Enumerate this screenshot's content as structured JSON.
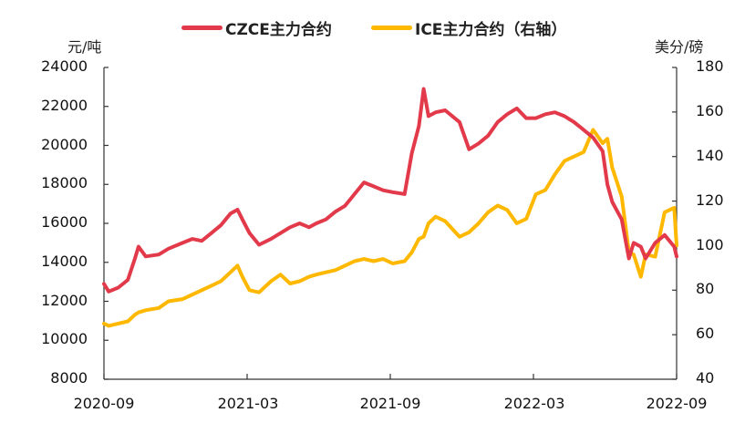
{
  "chart_data": {
    "type": "line",
    "title": "",
    "legend": [
      {
        "name": "CZCE主力合约",
        "color": "#E23A4A",
        "axis": "left"
      },
      {
        "name": "ICE主力合约（右轴）",
        "color": "#FFB800",
        "axis": "right"
      }
    ],
    "legend_position": "top",
    "xlabel": "",
    "ylabel_left": "元/吨",
    "ylabel_right": "美分/磅",
    "x_ticks": [
      "2020-09",
      "2021-03",
      "2021-09",
      "2022-03",
      "2022-09"
    ],
    "y_left_ticks": [
      8000,
      10000,
      12000,
      14000,
      16000,
      18000,
      20000,
      22000,
      24000
    ],
    "y_right_ticks": [
      40,
      60,
      80,
      100,
      120,
      140,
      160,
      180
    ],
    "ylim_left": [
      8000,
      24000
    ],
    "ylim_right": [
      40,
      180
    ],
    "grid": false,
    "x_months_from_2020_09": [
      0,
      0.2,
      0.6,
      1.0,
      1.3,
      1.45,
      1.75,
      2.3,
      2.7,
      3.3,
      3.7,
      4.1,
      4.5,
      4.9,
      5.3,
      5.6,
      5.8,
      6.1,
      6.5,
      7.0,
      7.4,
      7.8,
      8.2,
      8.6,
      8.9,
      9.3,
      9.7,
      10.1,
      10.5,
      10.9,
      11.3,
      11.7,
      12.1,
      12.6,
      12.9,
      13.2,
      13.4,
      13.6,
      13.9,
      14.3,
      14.9,
      15.3,
      15.7,
      16.1,
      16.5,
      16.9,
      17.3,
      17.7,
      18.1,
      18.5,
      18.9,
      19.3,
      19.7,
      20.1,
      20.5,
      20.9,
      21.1,
      21.3,
      21.7,
      22.0,
      22.2,
      22.5,
      22.7,
      23.1,
      23.5,
      23.9,
      24.0
    ],
    "series": [
      {
        "name": "CZCE主力合约",
        "axis": "left",
        "values": [
          12900,
          12500,
          12700,
          13100,
          14200,
          14800,
          14300,
          14400,
          14700,
          15000,
          15200,
          15100,
          15500,
          15900,
          16500,
          16700,
          16200,
          15500,
          14900,
          15200,
          15500,
          15800,
          16000,
          15800,
          16000,
          16200,
          16600,
          16900,
          17500,
          18100,
          17900,
          17700,
          17600,
          17500,
          19600,
          21000,
          22900,
          21500,
          21700,
          21800,
          21200,
          19800,
          20100,
          20500,
          21200,
          21600,
          21900,
          21400,
          21400,
          21600,
          21700,
          21500,
          21200,
          20800,
          20400,
          19700,
          18000,
          17100,
          16200,
          14200,
          15000,
          14800,
          14200,
          15000,
          15400,
          14800,
          14300
        ]
      },
      {
        "name": "ICE主力合约（右轴）",
        "axis": "right",
        "values": [
          65,
          64,
          65,
          66,
          69,
          70,
          71,
          72,
          75,
          76,
          78,
          80,
          82,
          84,
          88,
          91,
          86,
          80,
          79,
          84,
          87,
          83,
          84,
          86,
          87,
          88,
          89,
          91,
          93,
          94,
          93,
          94,
          92,
          93,
          97,
          103,
          104,
          110,
          113,
          111,
          104,
          106,
          110,
          115,
          118,
          116,
          110,
          112,
          123,
          125,
          132,
          138,
          140,
          142,
          152,
          146,
          148,
          135,
          122,
          97,
          96,
          86,
          96,
          95,
          115,
          117,
          100
        ]
      }
    ]
  },
  "legend": {
    "czce_label": "CZCE主力合约",
    "ice_label": "ICE主力合约（右轴）"
  },
  "axes": {
    "left_unit": "元/吨",
    "right_unit": "美分/磅",
    "left_ticks": [
      "24000",
      "22000",
      "20000",
      "18000",
      "16000",
      "14000",
      "12000",
      "10000",
      "8000"
    ],
    "right_ticks": [
      "180",
      "160",
      "140",
      "120",
      "100",
      "80",
      "60",
      "40"
    ],
    "x_ticks": [
      "2020-09",
      "2021-03",
      "2021-09",
      "2022-03",
      "2022-09"
    ]
  },
  "colors": {
    "czce": "#E23A4A",
    "ice": "#FFB800",
    "axis": "#333333"
  }
}
